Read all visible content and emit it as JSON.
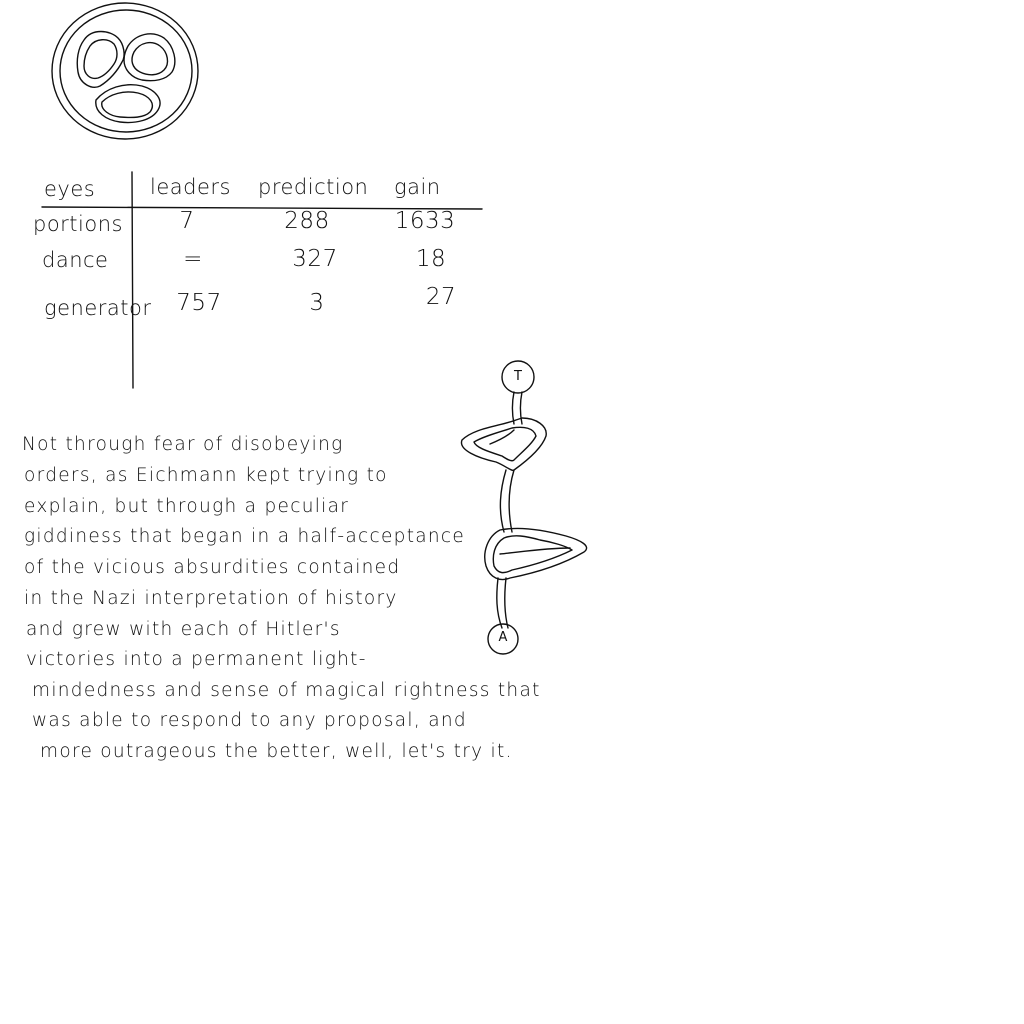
{
  "table": {
    "headers": [
      "eyes",
      "leaders",
      "prediction",
      "gain"
    ],
    "rows": [
      {
        "label": "portions",
        "values": [
          "7",
          "288",
          "1633"
        ]
      },
      {
        "label": "dance",
        "values": [
          "=",
          "327",
          "18"
        ]
      },
      {
        "label": "generator",
        "values": [
          "757",
          "3",
          "27"
        ]
      }
    ]
  },
  "diagram": {
    "top_node_label": "T",
    "bottom_node_label": "A"
  },
  "paragraph": {
    "lines": [
      "Not through fear of disobeying",
      "orders, as Eichmann kept trying to",
      "explain, but through a peculiar",
      "giddiness that began in a half-acceptance",
      "of the vicious absurdities contained",
      "in the Nazi interpretation of history",
      "and grew with each of Hitler's",
      "victories into a permanent light-",
      "mindedness and sense of magical rightness that",
      "was able to respond to any proposal, and",
      "more outrageous the better, well, let's try it."
    ]
  }
}
